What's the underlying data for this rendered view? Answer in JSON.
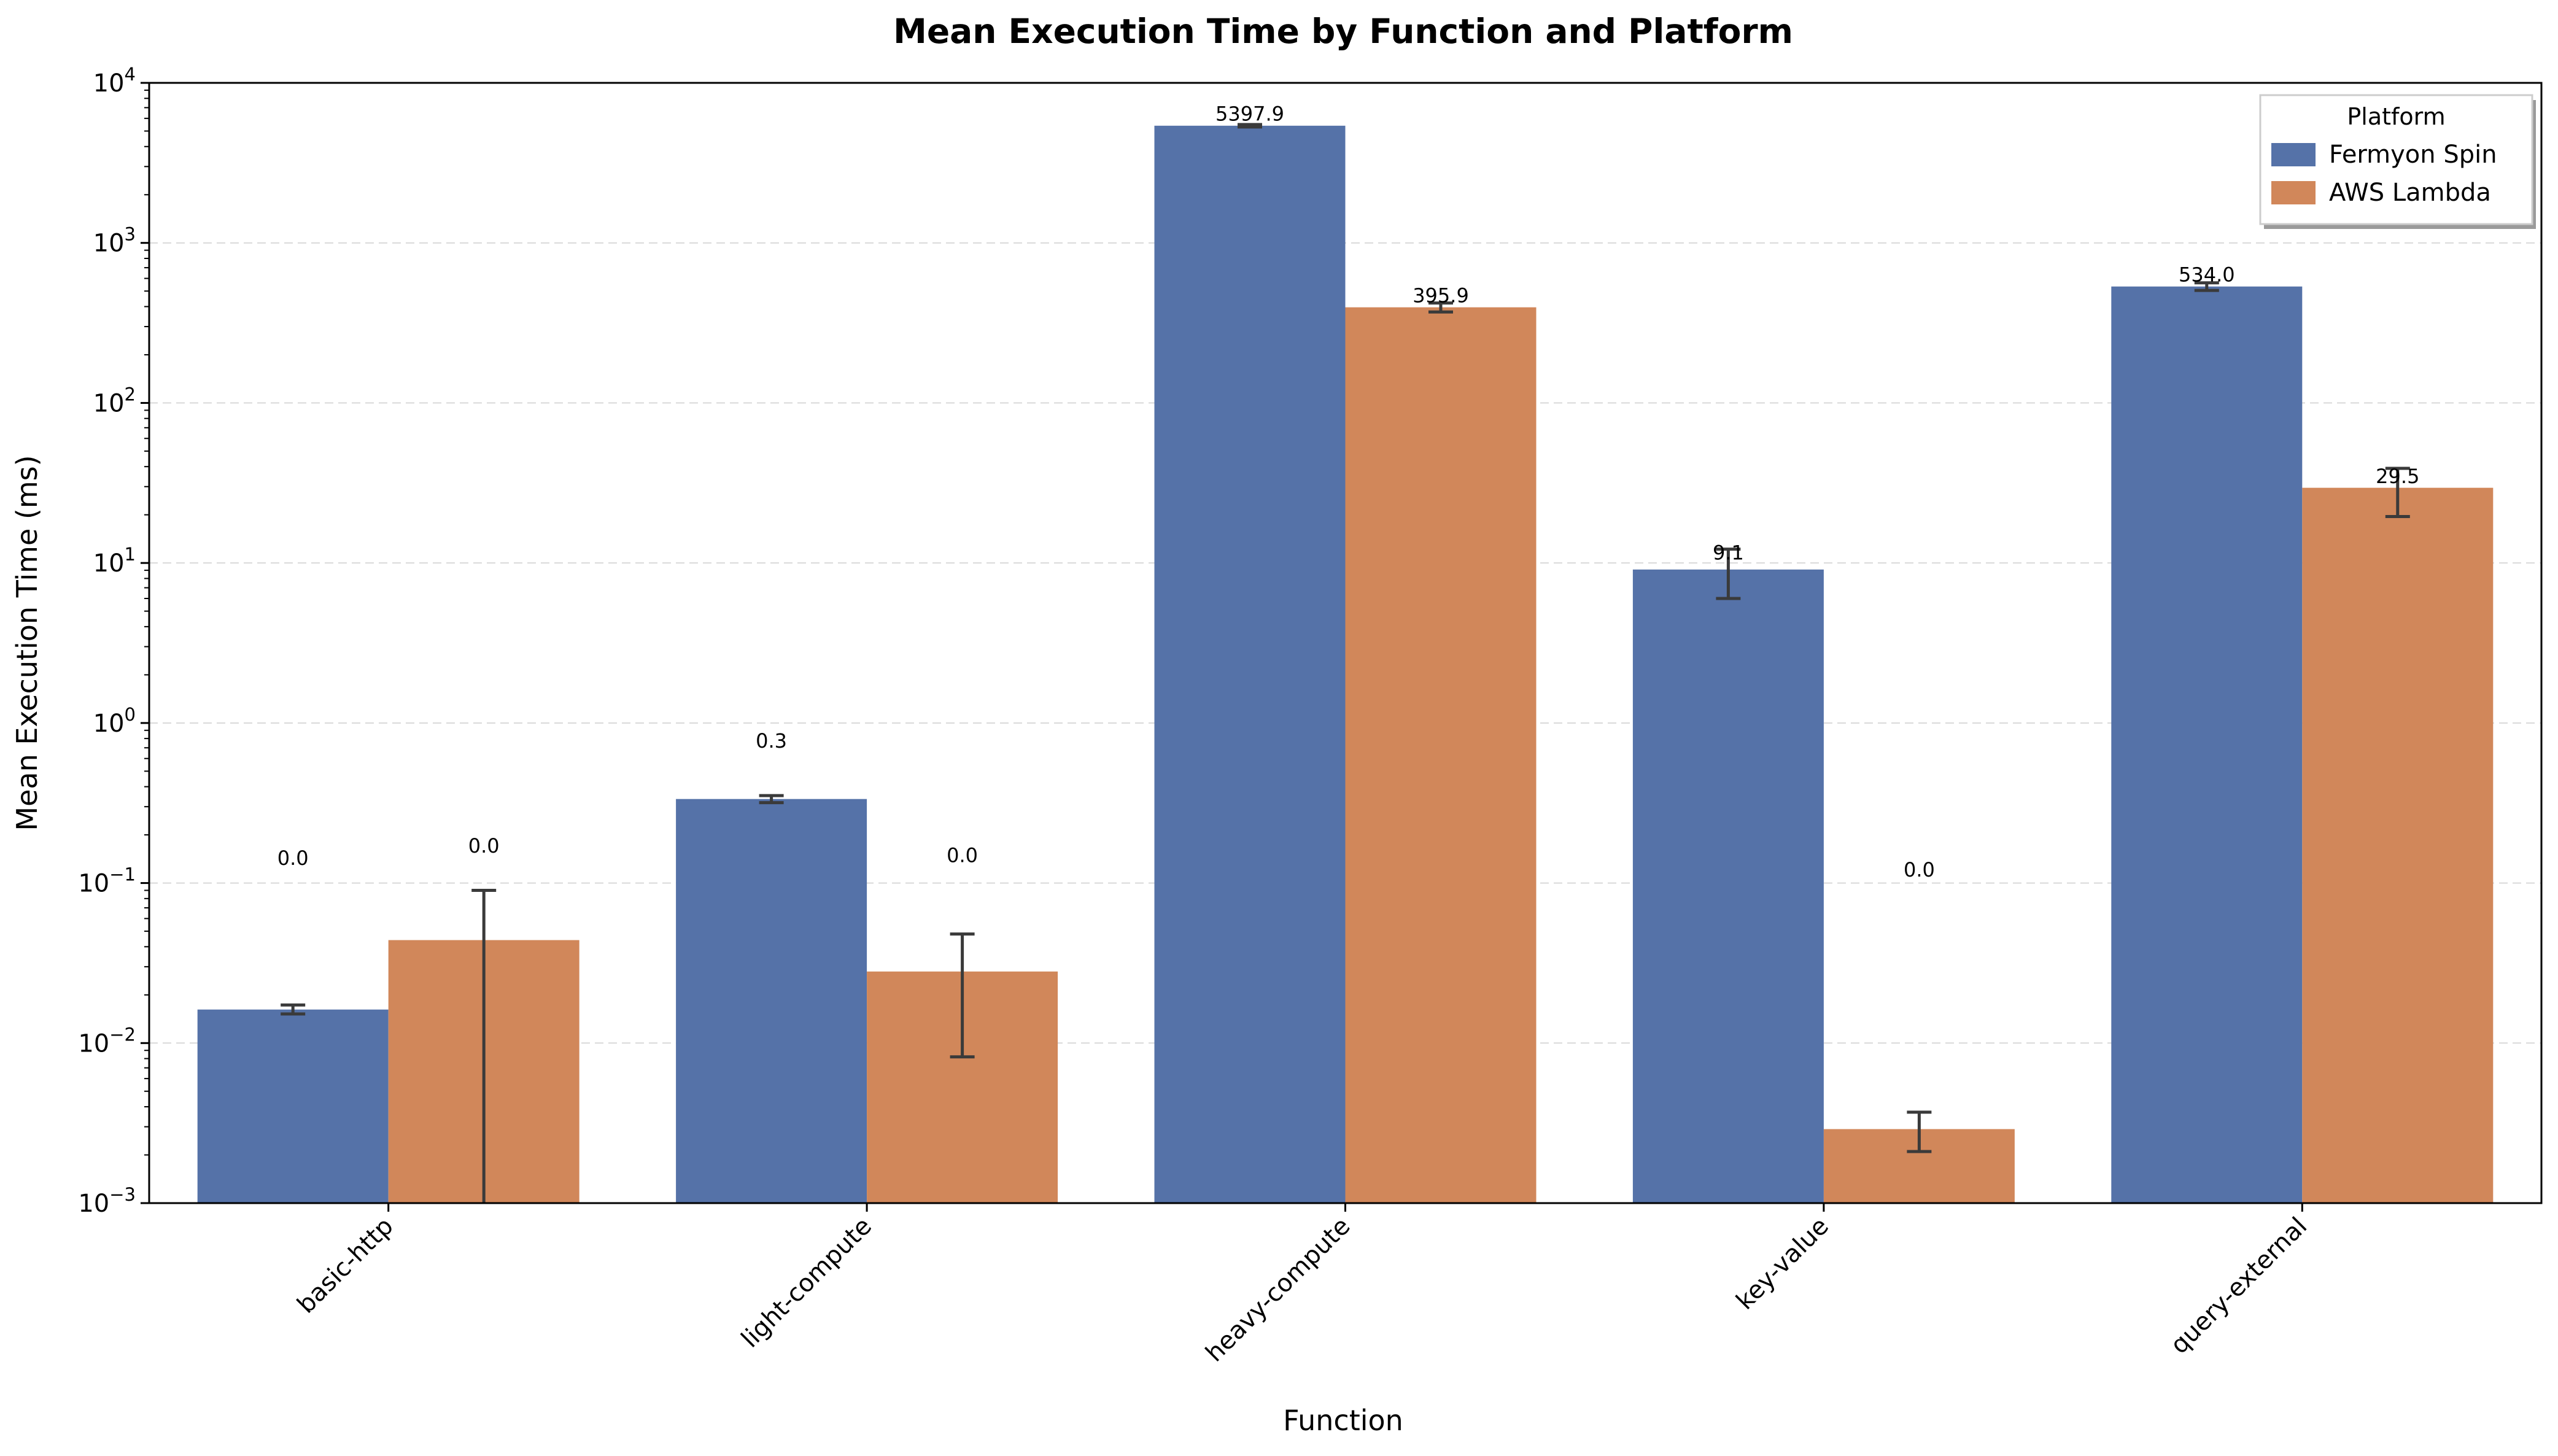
{
  "chart_data": {
    "type": "bar",
    "title": "Mean Execution Time by Function and Platform",
    "xlabel": "Function",
    "ylabel": "Mean Execution Time (ms)",
    "yscale": "log",
    "ylim": [
      0.001,
      10000
    ],
    "ytick_values": [
      0.001,
      0.01,
      0.1,
      1,
      10,
      100,
      1000,
      10000
    ],
    "ytick_exponents": [
      "−3",
      "−2",
      "−1",
      "0",
      "1",
      "2",
      "3",
      "4"
    ],
    "ytick_base": "10",
    "grid": "y-dashed",
    "legend_title": "Platform",
    "legend_position": "top-right",
    "categories": [
      "basic-http",
      "light-compute",
      "heavy-compute",
      "key-value",
      "query-external"
    ],
    "series": [
      {
        "name": "Fermyon Spin",
        "color": "#5572a8",
        "values": [
          0.0162,
          0.335,
          5397.9,
          9.1,
          534.0
        ],
        "err_low": [
          0.0152,
          0.318,
          5300,
          6.0,
          505
        ],
        "err_high": [
          0.0173,
          0.352,
          5490,
          12.2,
          563
        ],
        "labels": [
          "0.0",
          "0.3",
          "5397.9",
          "9.1",
          "534.0"
        ],
        "label_values": [
          0.13,
          0.7,
          5800,
          10.5,
          575
        ]
      },
      {
        "name": "AWS Lambda",
        "color": "#d1875a",
        "values": [
          0.044,
          0.028,
          395.9,
          0.0029,
          29.5
        ],
        "err_low": [
          0.001,
          0.0082,
          370,
          0.0021,
          19.5
        ],
        "err_high": [
          0.09,
          0.048,
          421,
          0.0037,
          39.0
        ],
        "labels": [
          "0.0",
          "0.0",
          "395.9",
          "0.0",
          "29.5"
        ],
        "label_values": [
          0.155,
          0.135,
          425,
          0.11,
          31.5
        ]
      }
    ]
  }
}
